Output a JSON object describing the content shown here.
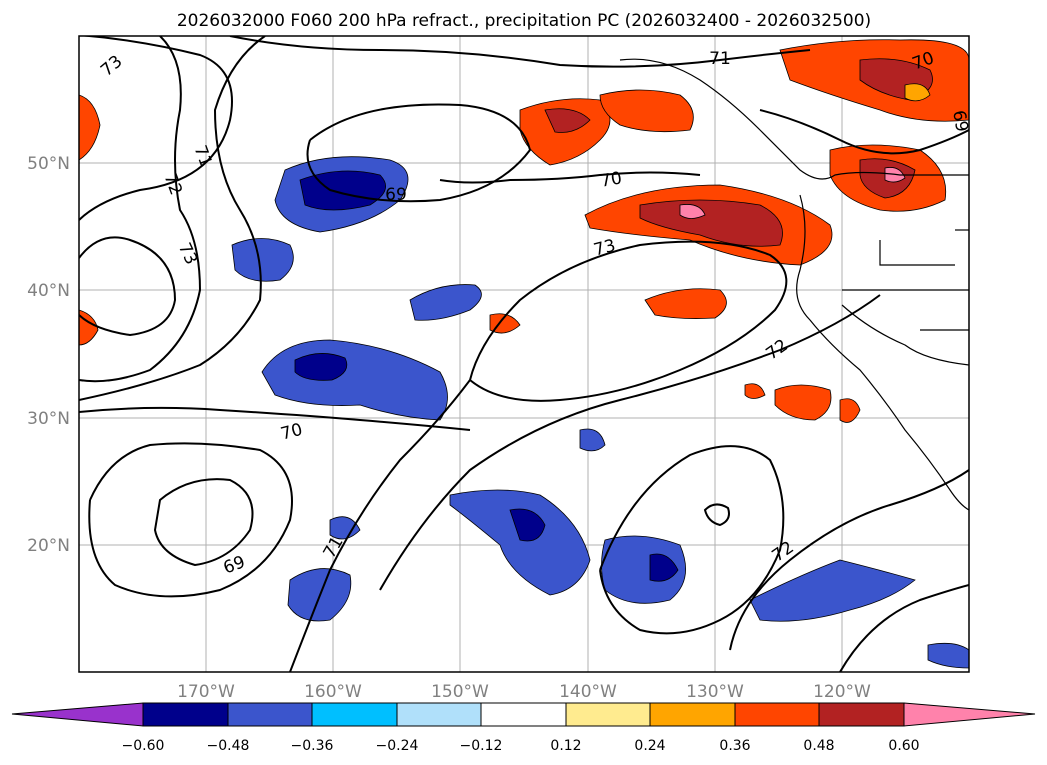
{
  "title": "2026032000 F060 200 hPa refract., precipitation PC (2026032400 - 2026032500)",
  "lon_labels": [
    "170°W",
    "160°W",
    "150°W",
    "140°W",
    "130°W",
    "120°W"
  ],
  "lat_labels": [
    "50°N",
    "40°N",
    "30°N",
    "20°N"
  ],
  "contour_labels": [
    {
      "text": "73"
    },
    {
      "text": "71"
    },
    {
      "text": "72"
    },
    {
      "text": "73"
    },
    {
      "text": "69"
    },
    {
      "text": "70"
    },
    {
      "text": "71"
    },
    {
      "text": "70"
    },
    {
      "text": "69"
    },
    {
      "text": "73"
    },
    {
      "text": "72"
    },
    {
      "text": "70"
    },
    {
      "text": "69"
    },
    {
      "text": "71"
    },
    {
      "text": "72"
    }
  ],
  "colorbar": {
    "ticks": [
      "−0.60",
      "−0.48",
      "−0.36",
      "−0.24",
      "−0.12",
      "0.12",
      "0.24",
      "0.36",
      "0.48",
      "0.60"
    ],
    "colors": [
      "#9932cc",
      "#00008b",
      "#3b55cc",
      "#00bfff",
      "#b0e0fa",
      "#ffffff",
      "#ffeb8f",
      "#ffa500",
      "#ff4500",
      "#b22222",
      "#ff82ab"
    ]
  }
}
